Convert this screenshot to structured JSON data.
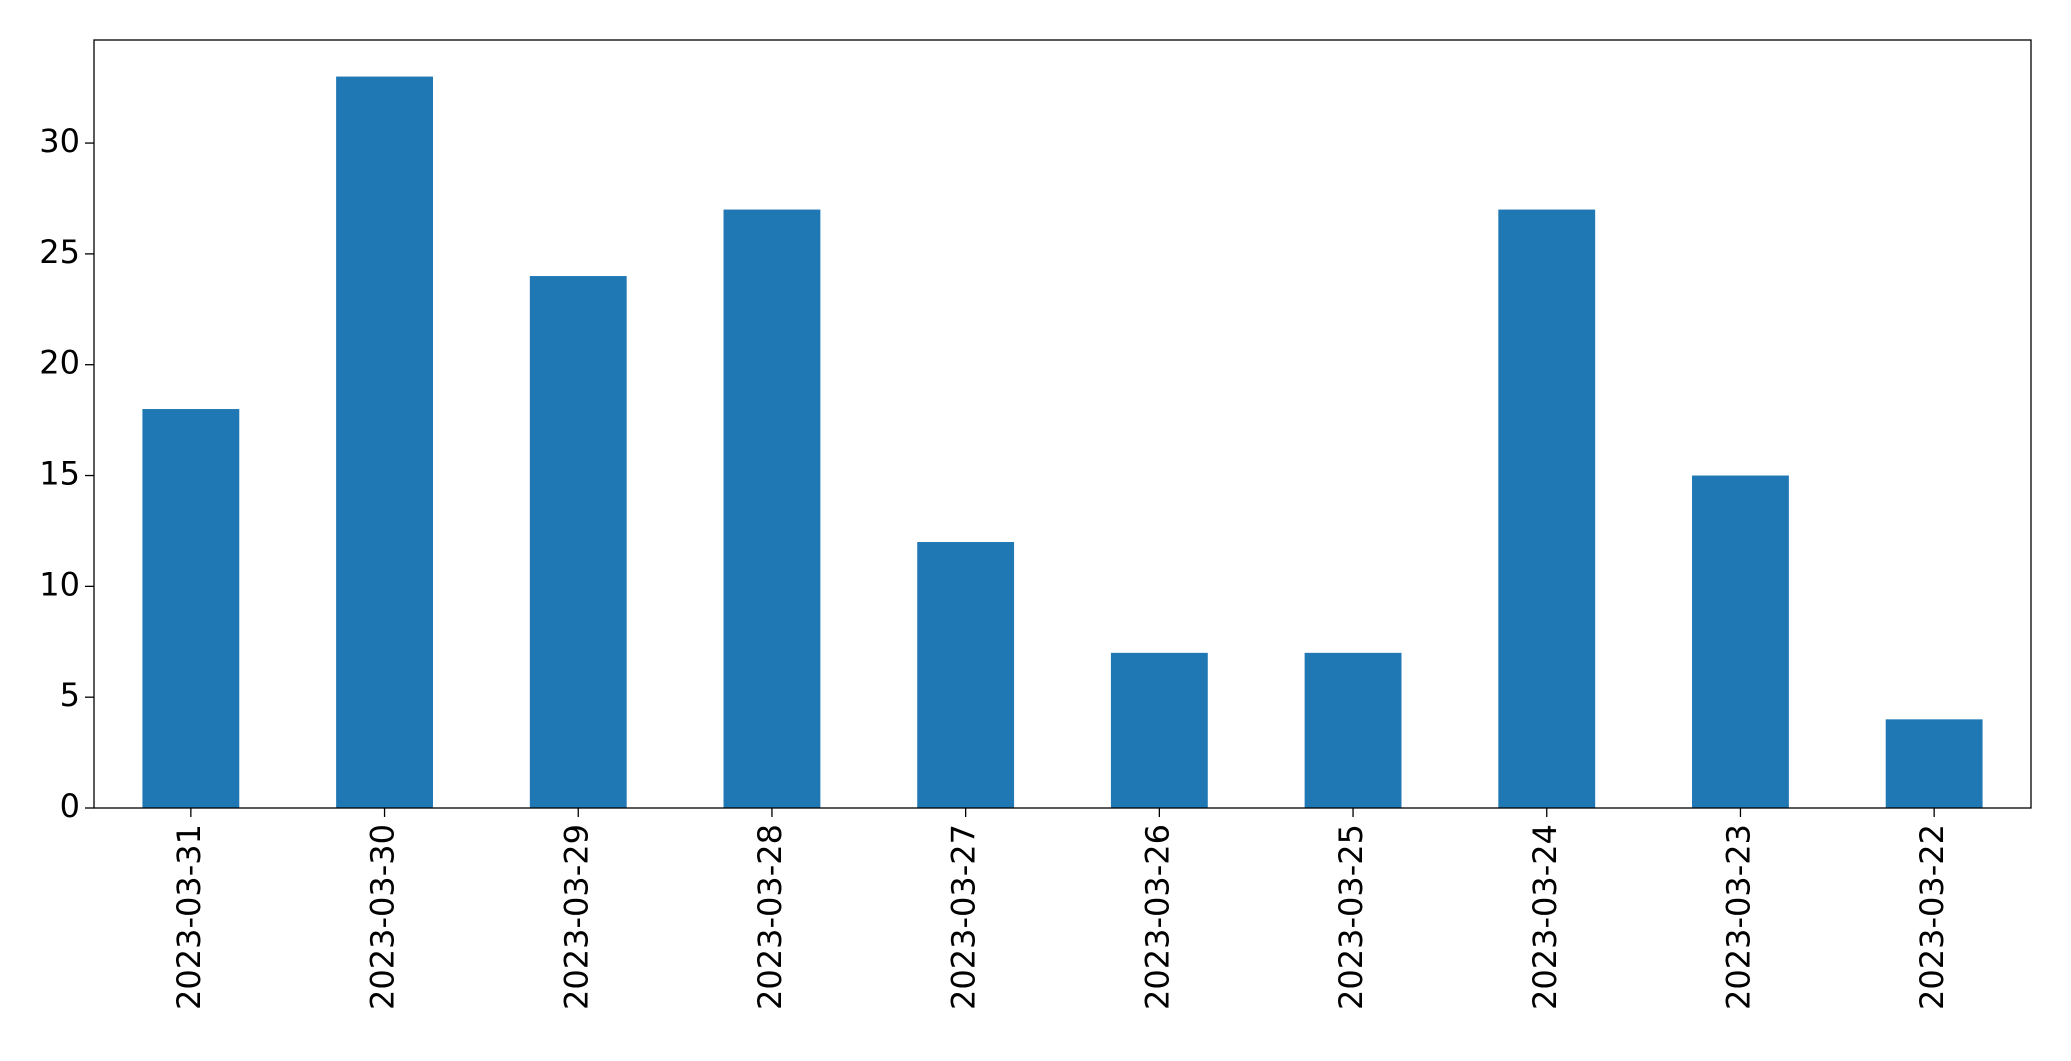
{
  "chart_data": {
    "type": "bar",
    "categories": [
      "2023-03-31",
      "2023-03-30",
      "2023-03-29",
      "2023-03-28",
      "2023-03-27",
      "2023-03-26",
      "2023-03-25",
      "2023-03-24",
      "2023-03-23",
      "2023-03-22"
    ],
    "values": [
      18,
      33,
      24,
      27,
      12,
      7,
      7,
      27,
      15,
      4
    ],
    "color": "#1f77b4",
    "ylim": [
      0,
      34.65
    ],
    "yticks": [
      0,
      5,
      10,
      15,
      20,
      25,
      30
    ],
    "grid": false
  }
}
